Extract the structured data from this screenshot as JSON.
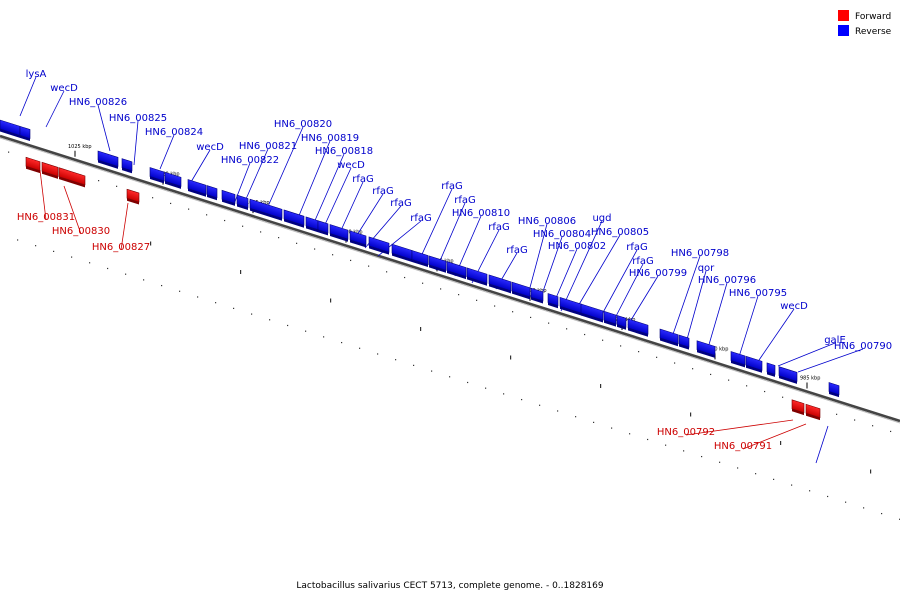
{
  "caption": "Lactobacillus salivarius CECT 5713, complete genome. - 0..1828169",
  "legend": [
    {
      "label": "Forward",
      "color": "#ff0000"
    },
    {
      "label": "Reverse",
      "color": "#0000ff"
    }
  ],
  "colors": {
    "forward": "#ff0000",
    "reverse": "#0000ff",
    "backbone": "#7f7f7f",
    "forward_label": "#cc0000",
    "reverse_label": "#0000cc"
  },
  "ticks": [
    "1025 kbp",
    "1020 kbp",
    "1015 kbp",
    "1010 kbp",
    "1005 kbp",
    "1000 kbp",
    "995 kbp",
    "990 kbp",
    "985 kbp"
  ],
  "forward_genes": [
    "HN6_00831",
    "HN6_00830",
    "HN6_00827",
    "HN6_00792",
    "HN6_00791"
  ],
  "reverse_genes": [
    "lysA",
    "wecD",
    "HN6_00826",
    "HN6_00825",
    "HN6_00824",
    "wecD",
    "HN6_00820",
    "HN6_00821",
    "HN6_00819",
    "HN6_00822",
    "HN6_00818",
    "wecD",
    "rfaG",
    "rfaG",
    "rfaG",
    "rfaG",
    "rfaG",
    "rfaG",
    "HN6_00810",
    "rfaG",
    "rfaG",
    "HN6_00806",
    "HN6_00804",
    "ugd",
    "HN6_00805",
    "HN6_00802",
    "rfaG",
    "rfaG",
    "HN6_00799",
    "HN6_00798",
    "qor",
    "HN6_00796",
    "HN6_00795",
    "wecD",
    "galE",
    "HN6_00790"
  ]
}
